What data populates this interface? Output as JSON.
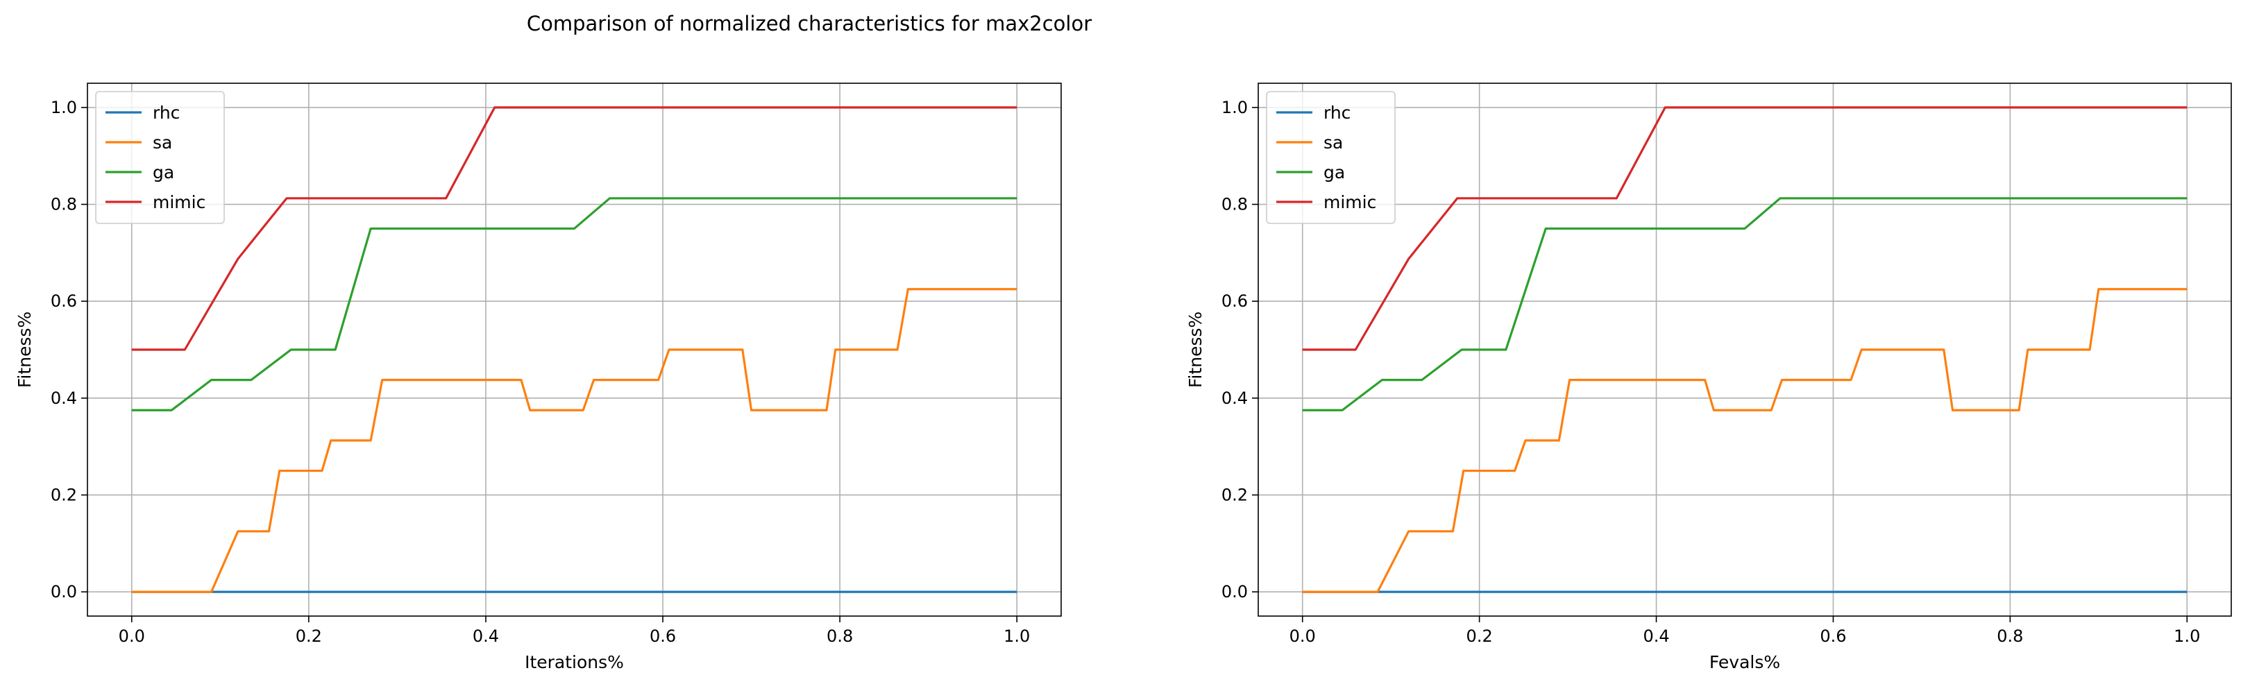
{
  "figure": {
    "suptitle": "Comparison of normalized characteristics for max2color"
  },
  "chart_data": [
    {
      "type": "line",
      "xlabel": "Iterations%",
      "ylabel": "Fitness%",
      "xlim": [
        -0.05,
        1.05
      ],
      "ylim": [
        -0.05,
        1.05
      ],
      "xticks": [
        0.0,
        0.2,
        0.4,
        0.6,
        0.8,
        1.0
      ],
      "xtick_labels": [
        "0.0",
        "0.2",
        "0.4",
        "0.6",
        "0.8",
        "1.0"
      ],
      "yticks": [
        0.0,
        0.2,
        0.4,
        0.6,
        0.8,
        1.0
      ],
      "ytick_labels": [
        "0.0",
        "0.2",
        "0.4",
        "0.6",
        "0.8",
        "1.0"
      ],
      "grid": true,
      "legend_position": "upper-left",
      "series": [
        {
          "name": "rhc",
          "color": "#1f77b4",
          "x": [
            0.0,
            1.0
          ],
          "y": [
            0.0,
            0.0
          ]
        },
        {
          "name": "sa",
          "color": "#ff7f0e",
          "x": [
            0.0,
            0.09,
            0.12,
            0.155,
            0.167,
            0.215,
            0.225,
            0.27,
            0.283,
            0.44,
            0.45,
            0.51,
            0.522,
            0.595,
            0.607,
            0.69,
            0.7,
            0.785,
            0.795,
            0.865,
            0.877,
            1.0
          ],
          "y": [
            0.0,
            0.0,
            0.125,
            0.125,
            0.25,
            0.25,
            0.3125,
            0.3125,
            0.4375,
            0.4375,
            0.375,
            0.375,
            0.4375,
            0.4375,
            0.5,
            0.5,
            0.375,
            0.375,
            0.5,
            0.5,
            0.625,
            0.625
          ]
        },
        {
          "name": "ga",
          "color": "#2ca02c",
          "x": [
            0.0,
            0.045,
            0.09,
            0.135,
            0.18,
            0.23,
            0.27,
            0.5,
            0.54,
            1.0
          ],
          "y": [
            0.375,
            0.375,
            0.4375,
            0.4375,
            0.5,
            0.5,
            0.75,
            0.75,
            0.8125,
            0.8125
          ]
        },
        {
          "name": "mimic",
          "color": "#d62728",
          "x": [
            0.0,
            0.06,
            0.12,
            0.175,
            0.355,
            0.41,
            1.0
          ],
          "y": [
            0.5,
            0.5,
            0.6875,
            0.8125,
            0.8125,
            1.0,
            1.0
          ]
        }
      ]
    },
    {
      "type": "line",
      "xlabel": "Fevals%",
      "ylabel": "Fitness%",
      "xlim": [
        -0.05,
        1.05
      ],
      "ylim": [
        -0.05,
        1.05
      ],
      "xticks": [
        0.0,
        0.2,
        0.4,
        0.6,
        0.8,
        1.0
      ],
      "xtick_labels": [
        "0.0",
        "0.2",
        "0.4",
        "0.6",
        "0.8",
        "1.0"
      ],
      "yticks": [
        0.0,
        0.2,
        0.4,
        0.6,
        0.8,
        1.0
      ],
      "ytick_labels": [
        "0.0",
        "0.2",
        "0.4",
        "0.6",
        "0.8",
        "1.0"
      ],
      "grid": true,
      "legend_position": "upper-left",
      "series": [
        {
          "name": "rhc",
          "color": "#1f77b4",
          "x": [
            0.0,
            1.0
          ],
          "y": [
            0.0,
            0.0
          ]
        },
        {
          "name": "sa",
          "color": "#ff7f0e",
          "x": [
            0.0,
            0.085,
            0.12,
            0.17,
            0.182,
            0.24,
            0.252,
            0.29,
            0.302,
            0.455,
            0.465,
            0.53,
            0.542,
            0.62,
            0.632,
            0.725,
            0.735,
            0.81,
            0.82,
            0.89,
            0.9,
            1.0
          ],
          "y": [
            0.0,
            0.0,
            0.125,
            0.125,
            0.25,
            0.25,
            0.3125,
            0.3125,
            0.4375,
            0.4375,
            0.375,
            0.375,
            0.4375,
            0.4375,
            0.5,
            0.5,
            0.375,
            0.375,
            0.5,
            0.5,
            0.625,
            0.625
          ]
        },
        {
          "name": "ga",
          "color": "#2ca02c",
          "x": [
            0.0,
            0.045,
            0.09,
            0.135,
            0.18,
            0.23,
            0.275,
            0.5,
            0.54,
            1.0
          ],
          "y": [
            0.375,
            0.375,
            0.4375,
            0.4375,
            0.5,
            0.5,
            0.75,
            0.75,
            0.8125,
            0.8125
          ]
        },
        {
          "name": "mimic",
          "color": "#d62728",
          "x": [
            0.0,
            0.06,
            0.12,
            0.175,
            0.355,
            0.41,
            1.0
          ],
          "y": [
            0.5,
            0.5,
            0.6875,
            0.8125,
            0.8125,
            1.0,
            1.0
          ]
        }
      ]
    }
  ]
}
